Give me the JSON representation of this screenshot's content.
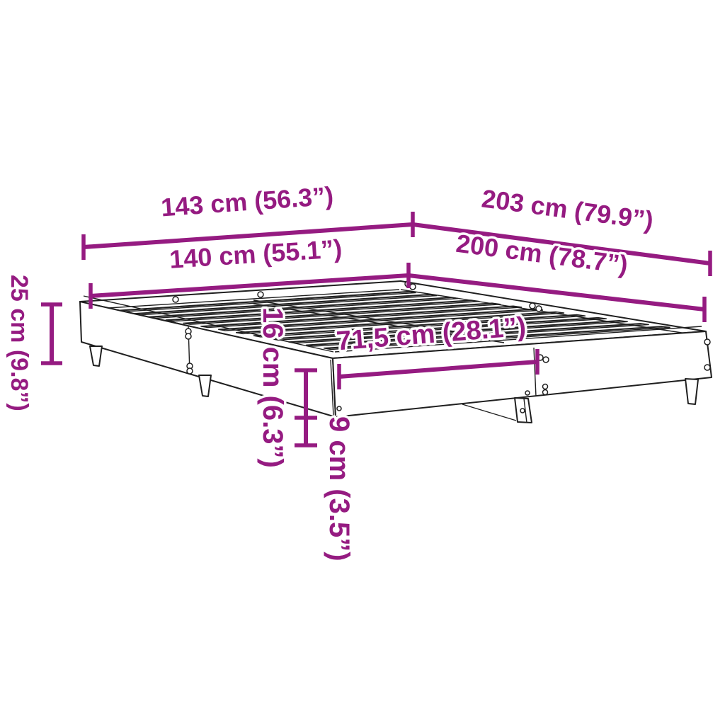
{
  "diagram": {
    "title": "bed-frame-dimension-diagram",
    "accent_color": "#951b81",
    "line_color": "#1f1f1f",
    "background_color": "#ffffff",
    "dimensions": {
      "width_outer": "143 cm (56.3”)",
      "width_inner": "140 cm (55.1”)",
      "length_outer": "203 cm (79.9”)",
      "length_inner": "200 cm (78.7”)",
      "height_total": "25 cm (9.8”)",
      "frame_height": "16 cm (6.3”)",
      "leg_height": "9 cm (3.5”)",
      "half_width": "71,5 cm (28.1”)"
    }
  }
}
